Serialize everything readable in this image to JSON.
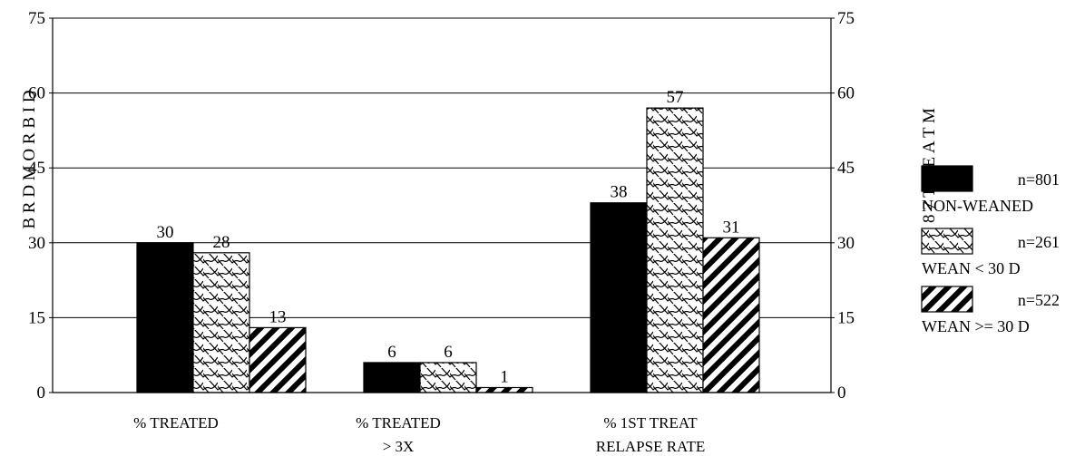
{
  "chart_data": {
    "type": "bar",
    "categories": [
      [
        "% TREATED"
      ],
      [
        "% TREATED",
        "> 3X"
      ],
      [
        "% 1ST TREAT",
        "RELAPSE RATE"
      ]
    ],
    "series": [
      {
        "name": "NON-WEANED",
        "n_label": "n=801",
        "values": [
          30,
          6,
          38
        ],
        "pattern": "solid-black"
      },
      {
        "name": "WEAN < 30 D",
        "n_label": "n=261",
        "values": [
          28,
          6,
          57
        ],
        "pattern": "wavy-lattice"
      },
      {
        "name": "WEAN >= 30 D",
        "n_label": "n=522",
        "values": [
          13,
          1,
          31
        ],
        "pattern": "diagonal-stripes"
      }
    ],
    "y_ticks": [
      "0",
      "15",
      "30",
      "45",
      "60",
      "75"
    ],
    "ylim": [
      0,
      75
    ],
    "left_axis_label": "B R D   M O R B I D",
    "right_axis_label": "% 1 8 7   T R E A T M",
    "grid": true,
    "legend_placement": "right"
  }
}
